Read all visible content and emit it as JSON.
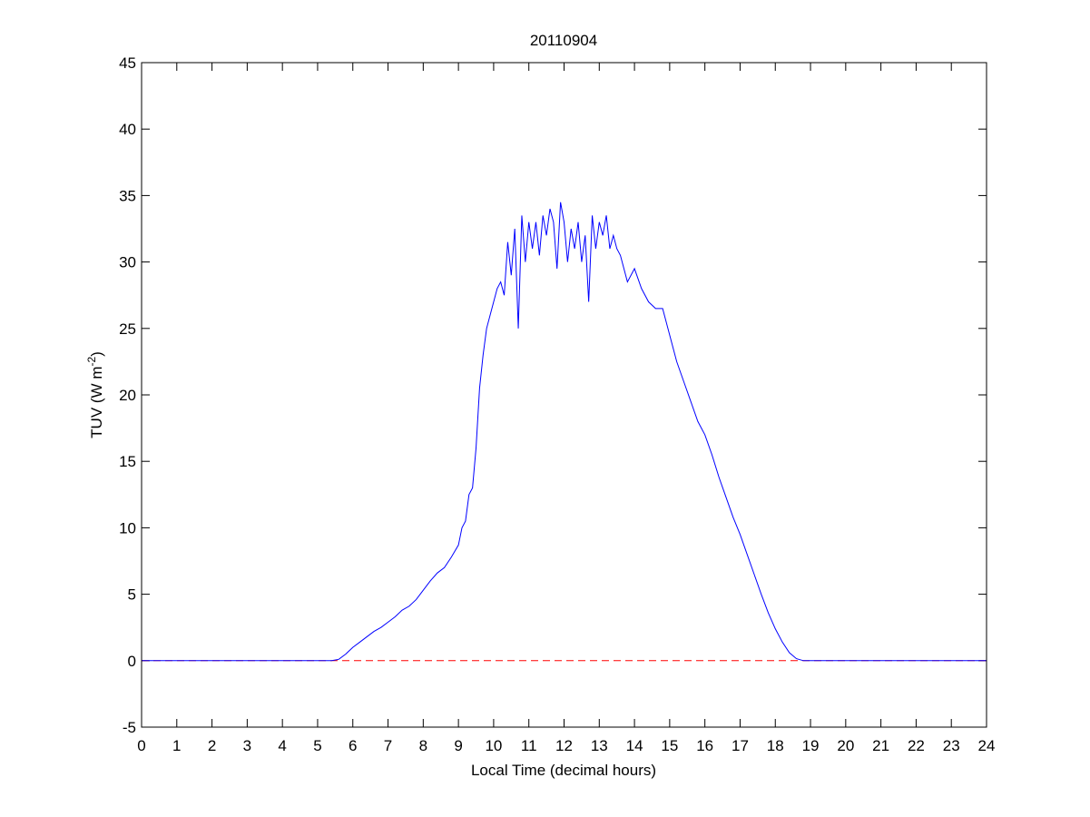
{
  "chart_data": {
    "type": "line",
    "title": "20110904",
    "xlabel": "Local Time (decimal hours)",
    "ylabel": {
      "base": "TUV (W m",
      "superscript": "-2",
      "end": ")"
    },
    "x": [
      0,
      5.4,
      5.6,
      5.8,
      6.0,
      6.2,
      6.4,
      6.6,
      6.8,
      7.0,
      7.2,
      7.4,
      7.6,
      7.8,
      8.0,
      8.2,
      8.4,
      8.6,
      8.8,
      9.0,
      9.1,
      9.2,
      9.3,
      9.4,
      9.5,
      9.6,
      9.7,
      9.8,
      9.9,
      10.0,
      10.1,
      10.2,
      10.3,
      10.4,
      10.5,
      10.6,
      10.7,
      10.8,
      10.9,
      11.0,
      11.1,
      11.2,
      11.3,
      11.4,
      11.5,
      11.6,
      11.7,
      11.8,
      11.9,
      12.0,
      12.1,
      12.2,
      12.3,
      12.4,
      12.5,
      12.6,
      12.7,
      12.8,
      12.9,
      13.0,
      13.1,
      13.2,
      13.3,
      13.4,
      13.5,
      13.6,
      13.7,
      13.8,
      13.9,
      14.0,
      14.2,
      14.4,
      14.6,
      14.8,
      15.0,
      15.2,
      15.4,
      15.6,
      15.8,
      16.0,
      16.2,
      16.4,
      16.6,
      16.8,
      17.0,
      17.2,
      17.4,
      17.6,
      17.8,
      18.0,
      18.2,
      18.4,
      18.6,
      18.8,
      19.0,
      24
    ],
    "series": [
      {
        "color": "#0000ff",
        "values": [
          0,
          0,
          0.1,
          0.5,
          1.0,
          1.4,
          1.8,
          2.2,
          2.5,
          2.9,
          3.3,
          3.8,
          4.1,
          4.6,
          5.3,
          6.0,
          6.6,
          7.0,
          7.8,
          8.7,
          10.0,
          10.5,
          12.5,
          13.0,
          16.0,
          20.5,
          23.0,
          25.0,
          26.0,
          27.0,
          28.0,
          28.5,
          27.5,
          31.5,
          29.0,
          32.5,
          25.0,
          33.5,
          30.0,
          33.0,
          31.0,
          33.0,
          30.5,
          33.5,
          32.0,
          34.0,
          33.0,
          29.5,
          34.5,
          33.0,
          30.0,
          32.5,
          31.0,
          33.0,
          30.0,
          32.0,
          27.0,
          33.5,
          31.0,
          33.0,
          32.0,
          33.5,
          31.0,
          32.0,
          31.0,
          30.5,
          29.5,
          28.5,
          29.0,
          29.5,
          28.0,
          27.0,
          26.5,
          26.5,
          24.5,
          22.5,
          21.0,
          19.5,
          18.0,
          17.0,
          15.5,
          13.8,
          12.3,
          10.8,
          9.5,
          8.0,
          6.5,
          5.0,
          3.6,
          2.4,
          1.4,
          0.6,
          0.15,
          0,
          0,
          0
        ]
      }
    ],
    "reference_line": {
      "value": 0,
      "color": "#ff0000",
      "style": "dashed"
    },
    "xlim": [
      0,
      24
    ],
    "xticks": [
      0,
      1,
      2,
      3,
      4,
      5,
      6,
      7,
      8,
      9,
      10,
      11,
      12,
      13,
      14,
      15,
      16,
      17,
      18,
      19,
      20,
      21,
      22,
      23,
      24
    ],
    "ylim": [
      -5,
      45
    ],
    "yticks": [
      -5,
      0,
      5,
      10,
      15,
      20,
      25,
      30,
      35,
      40,
      45
    ],
    "grid": false
  }
}
